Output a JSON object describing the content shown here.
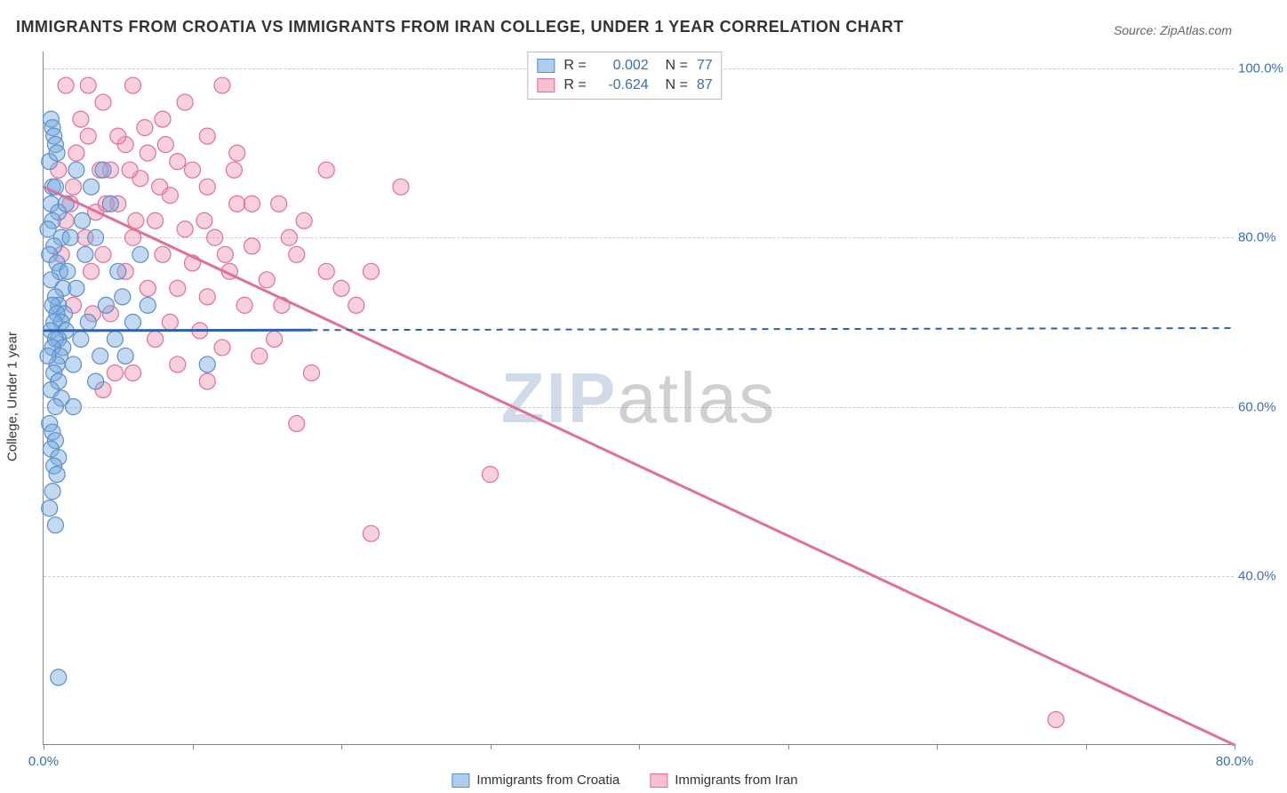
{
  "title": "IMMIGRANTS FROM CROATIA VS IMMIGRANTS FROM IRAN COLLEGE, UNDER 1 YEAR CORRELATION CHART",
  "source": "Source: ZipAtlas.com",
  "ylabel": "College, Under 1 year",
  "watermark_a": "ZIP",
  "watermark_b": "atlas",
  "axes": {
    "xlim": [
      0,
      80
    ],
    "ylim": [
      20,
      102
    ],
    "xticks": [
      0,
      10,
      20,
      30,
      40,
      50,
      60,
      70,
      80
    ],
    "xtick_labels": {
      "0": "0.0%",
      "80": "80.0%"
    },
    "yticks": [
      40,
      60,
      80,
      100
    ],
    "ytick_labels": {
      "40": "40.0%",
      "60": "60.0%",
      "80": "80.0%",
      "100": "100.0%"
    },
    "grid_color": "#cccccc",
    "axis_color": "#888888"
  },
  "series": {
    "croatia": {
      "label": "Immigrants from Croatia",
      "color_fill": "rgba(120,170,225,0.45)",
      "color_stroke": "#5b8fc7",
      "marker_radius": 9,
      "r_value": "0.002",
      "n_value": "77",
      "regression": {
        "x1": 0,
        "y1": 69,
        "x2": 80,
        "y2": 69.3,
        "solid_until_x": 18
      },
      "points": [
        [
          0.5,
          94
        ],
        [
          0.6,
          93
        ],
        [
          0.7,
          92
        ],
        [
          0.8,
          91
        ],
        [
          0.4,
          89
        ],
        [
          0.6,
          86
        ],
        [
          0.8,
          86
        ],
        [
          0.5,
          84
        ],
        [
          1.0,
          83
        ],
        [
          0.6,
          82
        ],
        [
          0.3,
          81
        ],
        [
          1.2,
          80
        ],
        [
          0.7,
          79
        ],
        [
          0.4,
          78
        ],
        [
          0.9,
          77
        ],
        [
          1.1,
          76
        ],
        [
          0.5,
          75
        ],
        [
          1.3,
          74
        ],
        [
          0.8,
          73
        ],
        [
          1.0,
          72
        ],
        [
          0.6,
          72
        ],
        [
          1.4,
          71
        ],
        [
          0.9,
          71
        ],
        [
          1.2,
          70
        ],
        [
          0.7,
          70
        ],
        [
          1.5,
          69
        ],
        [
          0.5,
          69
        ],
        [
          1.0,
          68
        ],
        [
          0.8,
          68
        ],
        [
          1.3,
          67
        ],
        [
          0.6,
          67
        ],
        [
          1.1,
          66
        ],
        [
          0.9,
          65
        ],
        [
          0.7,
          64
        ],
        [
          1.0,
          63
        ],
        [
          0.5,
          62
        ],
        [
          1.2,
          61
        ],
        [
          0.8,
          60
        ],
        [
          3.5,
          80
        ],
        [
          2.8,
          78
        ],
        [
          2.2,
          74
        ],
        [
          4.2,
          72
        ],
        [
          3.0,
          70
        ],
        [
          2.5,
          68
        ],
        [
          3.8,
          66
        ],
        [
          2.0,
          65
        ],
        [
          4.5,
          84
        ],
        [
          5.0,
          76
        ],
        [
          6.0,
          70
        ],
        [
          5.5,
          66
        ],
        [
          0.4,
          58
        ],
        [
          0.6,
          57
        ],
        [
          0.8,
          56
        ],
        [
          0.5,
          55
        ],
        [
          1.0,
          54
        ],
        [
          0.7,
          53
        ],
        [
          0.9,
          52
        ],
        [
          0.6,
          50
        ],
        [
          0.4,
          48
        ],
        [
          0.8,
          46
        ],
        [
          11.0,
          65
        ],
        [
          1.0,
          28
        ],
        [
          3.2,
          86
        ],
        [
          4.0,
          88
        ],
        [
          2.6,
          82
        ],
        [
          1.8,
          80
        ],
        [
          5.3,
          73
        ],
        [
          4.8,
          68
        ],
        [
          3.5,
          63
        ],
        [
          2.0,
          60
        ],
        [
          6.5,
          78
        ],
        [
          7.0,
          72
        ],
        [
          1.6,
          76
        ],
        [
          0.9,
          90
        ],
        [
          1.5,
          84
        ],
        [
          2.2,
          88
        ],
        [
          0.3,
          66
        ]
      ]
    },
    "iran": {
      "label": "Immigrants from Iran",
      "color_fill": "rgba(240,150,180,0.45)",
      "color_stroke": "#e06f9a",
      "marker_radius": 9,
      "r_value": "-0.624",
      "n_value": "87",
      "regression": {
        "x1": 0,
        "y1": 86,
        "x2": 80,
        "y2": 20,
        "solid_until_x": 80
      },
      "points": [
        [
          1.5,
          98
        ],
        [
          6.0,
          98
        ],
        [
          12.0,
          98
        ],
        [
          4.0,
          96
        ],
        [
          2.5,
          94
        ],
        [
          8.0,
          94
        ],
        [
          3.0,
          92
        ],
        [
          5.5,
          91
        ],
        [
          7.0,
          90
        ],
        [
          9.0,
          89
        ],
        [
          4.5,
          88
        ],
        [
          10.0,
          88
        ],
        [
          6.5,
          87
        ],
        [
          2.0,
          86
        ],
        [
          11.0,
          86
        ],
        [
          24.0,
          86
        ],
        [
          8.5,
          85
        ],
        [
          5.0,
          84
        ],
        [
          13.0,
          84
        ],
        [
          3.5,
          83
        ],
        [
          7.5,
          82
        ],
        [
          9.5,
          81
        ],
        [
          6.0,
          80
        ],
        [
          11.5,
          80
        ],
        [
          14.0,
          79
        ],
        [
          4.0,
          78
        ],
        [
          8.0,
          78
        ],
        [
          17.0,
          78
        ],
        [
          10.0,
          77
        ],
        [
          5.5,
          76
        ],
        [
          12.5,
          76
        ],
        [
          19.0,
          76
        ],
        [
          15.0,
          75
        ],
        [
          7.0,
          74
        ],
        [
          9.0,
          74
        ],
        [
          20.0,
          74
        ],
        [
          11.0,
          73
        ],
        [
          13.5,
          72
        ],
        [
          16.0,
          72
        ],
        [
          4.5,
          71
        ],
        [
          8.5,
          70
        ],
        [
          10.5,
          69
        ],
        [
          7.5,
          68
        ],
        [
          12.0,
          67
        ],
        [
          14.5,
          66
        ],
        [
          9.0,
          65
        ],
        [
          6.0,
          64
        ],
        [
          11.0,
          63
        ],
        [
          4.0,
          62
        ],
        [
          17.0,
          58
        ],
        [
          1.0,
          88
        ],
        [
          1.8,
          84
        ],
        [
          2.8,
          80
        ],
        [
          3.2,
          76
        ],
        [
          2.0,
          72
        ],
        [
          1.2,
          78
        ],
        [
          17.5,
          82
        ],
        [
          19.0,
          88
        ],
        [
          21.0,
          72
        ],
        [
          22.0,
          76
        ],
        [
          15.5,
          68
        ],
        [
          18.0,
          64
        ],
        [
          30.0,
          52
        ],
        [
          22.0,
          45
        ],
        [
          68.0,
          23
        ],
        [
          5.0,
          92
        ],
        [
          6.8,
          93
        ],
        [
          8.2,
          91
        ],
        [
          12.8,
          88
        ],
        [
          14.0,
          84
        ],
        [
          16.5,
          80
        ],
        [
          3.0,
          98
        ],
        [
          9.5,
          96
        ],
        [
          11.0,
          92
        ],
        [
          13.0,
          90
        ],
        [
          7.8,
          86
        ],
        [
          5.8,
          88
        ],
        [
          4.2,
          84
        ],
        [
          6.2,
          82
        ],
        [
          2.2,
          90
        ],
        [
          1.5,
          82
        ],
        [
          3.8,
          88
        ],
        [
          10.8,
          82
        ],
        [
          12.2,
          78
        ],
        [
          15.8,
          84
        ],
        [
          3.3,
          71
        ],
        [
          4.8,
          64
        ]
      ]
    }
  },
  "legend_top": {
    "rows": [
      {
        "swatch_fill": "rgba(120,170,225,0.6)",
        "swatch_border": "#5b8fc7",
        "r_label": "R =",
        "r": "0.002",
        "n_label": "N =",
        "n": "77"
      },
      {
        "swatch_fill": "rgba(240,150,180,0.6)",
        "swatch_border": "#e06f9a",
        "r_label": "R =",
        "r": "-0.624",
        "n_label": "N =",
        "n": "87"
      }
    ]
  },
  "legend_bottom": [
    {
      "swatch_fill": "rgba(120,170,225,0.6)",
      "swatch_border": "#5b8fc7",
      "label": "Immigrants from Croatia"
    },
    {
      "swatch_fill": "rgba(240,150,180,0.6)",
      "swatch_border": "#e06f9a",
      "label": "Immigrants from Iran"
    }
  ]
}
